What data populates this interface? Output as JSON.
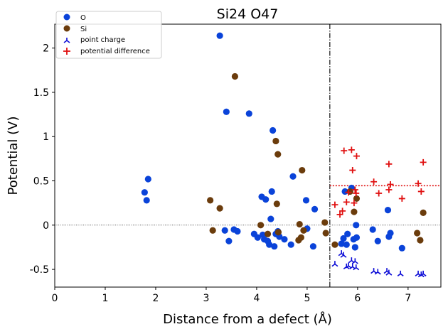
{
  "chart_data": {
    "type": "scatter",
    "title": "Si24 O47",
    "xlabel": "Distance from a defect (Å)",
    "ylabel": "Potential (V)",
    "xlim": [
      0,
      7.65
    ],
    "ylim": [
      -0.7,
      2.27
    ],
    "xticks": [
      0,
      1,
      2,
      3,
      4,
      5,
      6,
      7
    ],
    "xtick_labels": [
      "0",
      "1",
      "2",
      "3",
      "4",
      "5",
      "6",
      "7"
    ],
    "yticks": [
      -0.5,
      0,
      0.5,
      1,
      1.5,
      2
    ],
    "ytick_labels": [
      "-0.5",
      "0",
      "0.5",
      "1",
      "1.5",
      "2"
    ],
    "grid": false,
    "legend_position": "top-left",
    "reference_lines": {
      "zero_y": 0,
      "defect_cutoff_x": 5.45,
      "mean_potential_difference_y": 0.445,
      "mean_potential_difference_from_x": 5.45
    },
    "series": [
      {
        "name": "O",
        "marker": "circle",
        "color": "#0a43d9",
        "points": [
          [
            1.78,
            0.37
          ],
          [
            1.82,
            0.28
          ],
          [
            1.85,
            0.52
          ],
          [
            3.27,
            2.14
          ],
          [
            3.4,
            1.28
          ],
          [
            3.37,
            -0.06
          ],
          [
            3.45,
            -0.18
          ],
          [
            3.55,
            -0.05
          ],
          [
            3.62,
            -0.07
          ],
          [
            3.85,
            1.26
          ],
          [
            3.95,
            -0.1
          ],
          [
            4.02,
            -0.14
          ],
          [
            4.1,
            0.32
          ],
          [
            4.12,
            -0.11
          ],
          [
            4.15,
            -0.16
          ],
          [
            4.18,
            0.29
          ],
          [
            4.22,
            -0.18
          ],
          [
            4.25,
            -0.22
          ],
          [
            4.28,
            0.07
          ],
          [
            4.3,
            0.38
          ],
          [
            4.32,
            1.07
          ],
          [
            4.35,
            -0.24
          ],
          [
            4.38,
            -0.1
          ],
          [
            4.42,
            -0.07
          ],
          [
            4.45,
            -0.13
          ],
          [
            4.55,
            -0.16
          ],
          [
            4.68,
            -0.22
          ],
          [
            4.72,
            0.55
          ],
          [
            4.98,
            0.28
          ],
          [
            5.0,
            -0.04
          ],
          [
            5.12,
            -0.24
          ],
          [
            5.15,
            0.18
          ],
          [
            5.68,
            -0.21
          ],
          [
            5.72,
            -0.15
          ],
          [
            5.8,
            -0.1
          ],
          [
            5.78,
            -0.22
          ],
          [
            5.75,
            0.38
          ],
          [
            5.88,
            0.42
          ],
          [
            5.92,
            -0.16
          ],
          [
            5.95,
            -0.25
          ],
          [
            5.97,
            0.0
          ],
          [
            5.98,
            -0.14
          ],
          [
            6.3,
            -0.05
          ],
          [
            6.4,
            -0.18
          ],
          [
            6.6,
            0.17
          ],
          [
            6.62,
            -0.13
          ],
          [
            6.65,
            -0.09
          ],
          [
            6.88,
            -0.26
          ]
        ]
      },
      {
        "name": "Si",
        "marker": "circle",
        "color": "#6b3c0c",
        "points": [
          [
            3.08,
            0.28
          ],
          [
            3.13,
            -0.06
          ],
          [
            3.27,
            0.19
          ],
          [
            3.57,
            1.68
          ],
          [
            4.08,
            0.0
          ],
          [
            4.22,
            -0.1
          ],
          [
            4.38,
            0.95
          ],
          [
            4.42,
            0.8
          ],
          [
            4.4,
            0.24
          ],
          [
            4.43,
            -0.08
          ],
          [
            4.83,
            -0.17
          ],
          [
            4.85,
            0.01
          ],
          [
            4.88,
            -0.14
          ],
          [
            4.9,
            0.62
          ],
          [
            4.93,
            -0.06
          ],
          [
            5.35,
            0.03
          ],
          [
            5.37,
            -0.09
          ],
          [
            5.55,
            -0.22
          ],
          [
            5.85,
            0.38
          ],
          [
            5.93,
            0.15
          ],
          [
            5.98,
            0.3
          ],
          [
            7.18,
            -0.09
          ],
          [
            7.24,
            -0.17
          ],
          [
            7.3,
            0.14
          ]
        ]
      },
      {
        "name": "point charge",
        "marker": "tri_down",
        "color": "#0a0ad6",
        "points": [
          [
            5.55,
            -0.44
          ],
          [
            5.68,
            -0.32
          ],
          [
            5.72,
            -0.34
          ],
          [
            5.78,
            -0.47
          ],
          [
            5.82,
            -0.46
          ],
          [
            5.88,
            -0.4
          ],
          [
            5.9,
            -0.47
          ],
          [
            5.95,
            -0.41
          ],
          [
            5.97,
            -0.48
          ],
          [
            6.32,
            -0.52
          ],
          [
            6.4,
            -0.53
          ],
          [
            6.58,
            -0.52
          ],
          [
            6.62,
            -0.54
          ],
          [
            6.85,
            -0.55
          ],
          [
            7.2,
            -0.55
          ],
          [
            7.26,
            -0.56
          ],
          [
            7.3,
            -0.55
          ]
        ]
      },
      {
        "name": "potential difference",
        "marker": "plus",
        "color": "#e01010",
        "points": [
          [
            5.55,
            0.23
          ],
          [
            5.65,
            0.12
          ],
          [
            5.7,
            0.16
          ],
          [
            5.73,
            0.84
          ],
          [
            5.78,
            0.26
          ],
          [
            5.82,
            0.37
          ],
          [
            5.88,
            0.85
          ],
          [
            5.9,
            0.62
          ],
          [
            5.93,
            0.25
          ],
          [
            5.95,
            0.4
          ],
          [
            5.97,
            0.36
          ],
          [
            5.98,
            0.78
          ],
          [
            6.32,
            0.49
          ],
          [
            6.42,
            0.36
          ],
          [
            6.62,
            0.69
          ],
          [
            6.62,
            0.4
          ],
          [
            6.65,
            0.46
          ],
          [
            6.88,
            0.3
          ],
          [
            7.2,
            0.47
          ],
          [
            7.26,
            0.38
          ],
          [
            7.3,
            0.71
          ]
        ]
      }
    ]
  }
}
